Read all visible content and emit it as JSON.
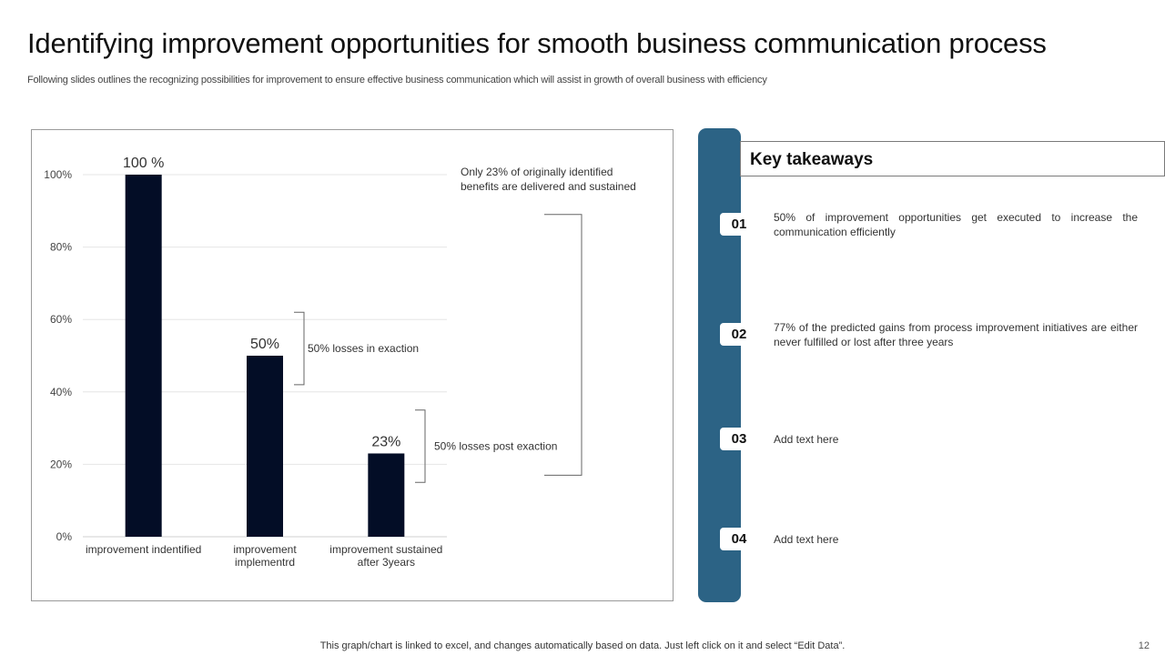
{
  "slide": {
    "title": "Identifying improvement opportunities for smooth business communication process",
    "subtitle": "Following slides outlines the recognizing possibilities for improvement to ensure effective business communication which will assist in growth of overall business with efficiency",
    "footer_note": "This graph/chart is linked to excel, and changes automatically based on data. Just left click on it and select “Edit Data”.",
    "page_number": "12"
  },
  "chart_data": {
    "type": "bar",
    "categories": [
      [
        "improvement indentified"
      ],
      [
        "improvement",
        "implementrd"
      ],
      [
        "improvement sustained",
        "after 3years"
      ]
    ],
    "values": [
      100,
      50,
      23
    ],
    "data_labels": [
      "100 %",
      "50%",
      "23%"
    ],
    "y_ticks": [
      0,
      20,
      40,
      60,
      80,
      100
    ],
    "y_tick_labels": [
      "0%",
      "20%",
      "40%",
      "60%",
      "80%",
      "100%"
    ],
    "ylim": [
      0,
      100
    ],
    "grid": true,
    "bar_color": "#030d26",
    "annotations": {
      "loss_exaction": "50%  losses in exaction",
      "loss_post_exaction": "50%  losses post exaction",
      "delivered_note": [
        "Only  23%  of  originally  identified",
        "benefits  are delivered  and  sustained"
      ]
    }
  },
  "takeaways": {
    "title": "Key takeaways",
    "accent_color": "#2c6385",
    "items": [
      {
        "num": "01",
        "text": "50% of improvement  opportunities  get executed to increase the communication efficiently"
      },
      {
        "num": "02",
        "text": "77% of the predicted gains from  process improvement  initiatives are either never  fulfilled  or lost after three years"
      },
      {
        "num": "03",
        "text": "Add text here"
      },
      {
        "num": "04",
        "text": "Add text here"
      }
    ]
  }
}
